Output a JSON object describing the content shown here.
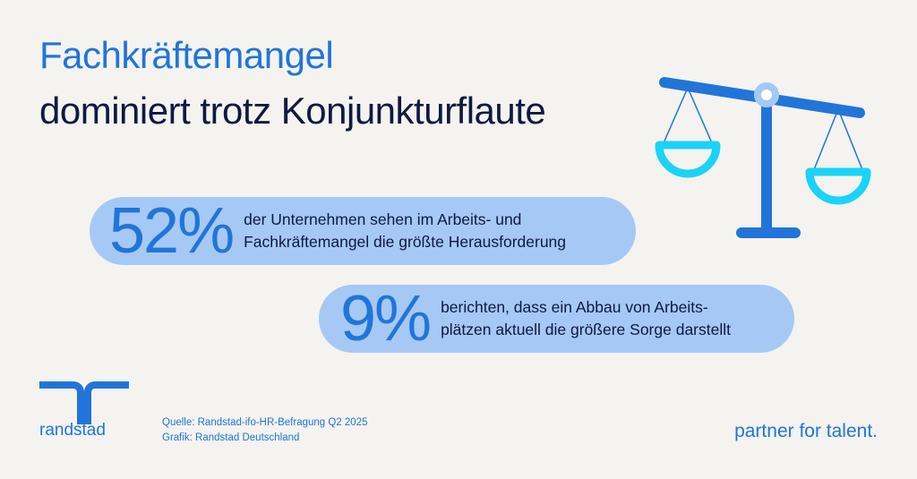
{
  "title": {
    "line1": "Fachkräftemangel",
    "line2": "dominiert trotz Konjunkturflaute"
  },
  "stats": [
    {
      "value": "52%",
      "text_line1": "der Unternehmen sehen im Arbeits- und",
      "text_line2": "Fachkräftemangel die größte Herausforderung"
    },
    {
      "value": "9%",
      "text_line1": "berichten, dass ein Abbau von Arbeits-",
      "text_line2": "plätzen aktuell die größere Sorge darstellt"
    }
  ],
  "brand": {
    "name": "randstad",
    "tagline": "partner for talent."
  },
  "source": {
    "line1": "Quelle: Randstad-ifo-HR-Befragung Q2 2025",
    "line2": "Grafik: Randstad Deutschland"
  },
  "colors": {
    "background": "#f4f3ef",
    "accent_blue": "#2175d9",
    "navy": "#0f1941",
    "pill_blue": "#a6c8f5",
    "cyan": "#1ad3f8"
  },
  "icons": [
    "scale-icon",
    "randstad-logo-icon"
  ]
}
